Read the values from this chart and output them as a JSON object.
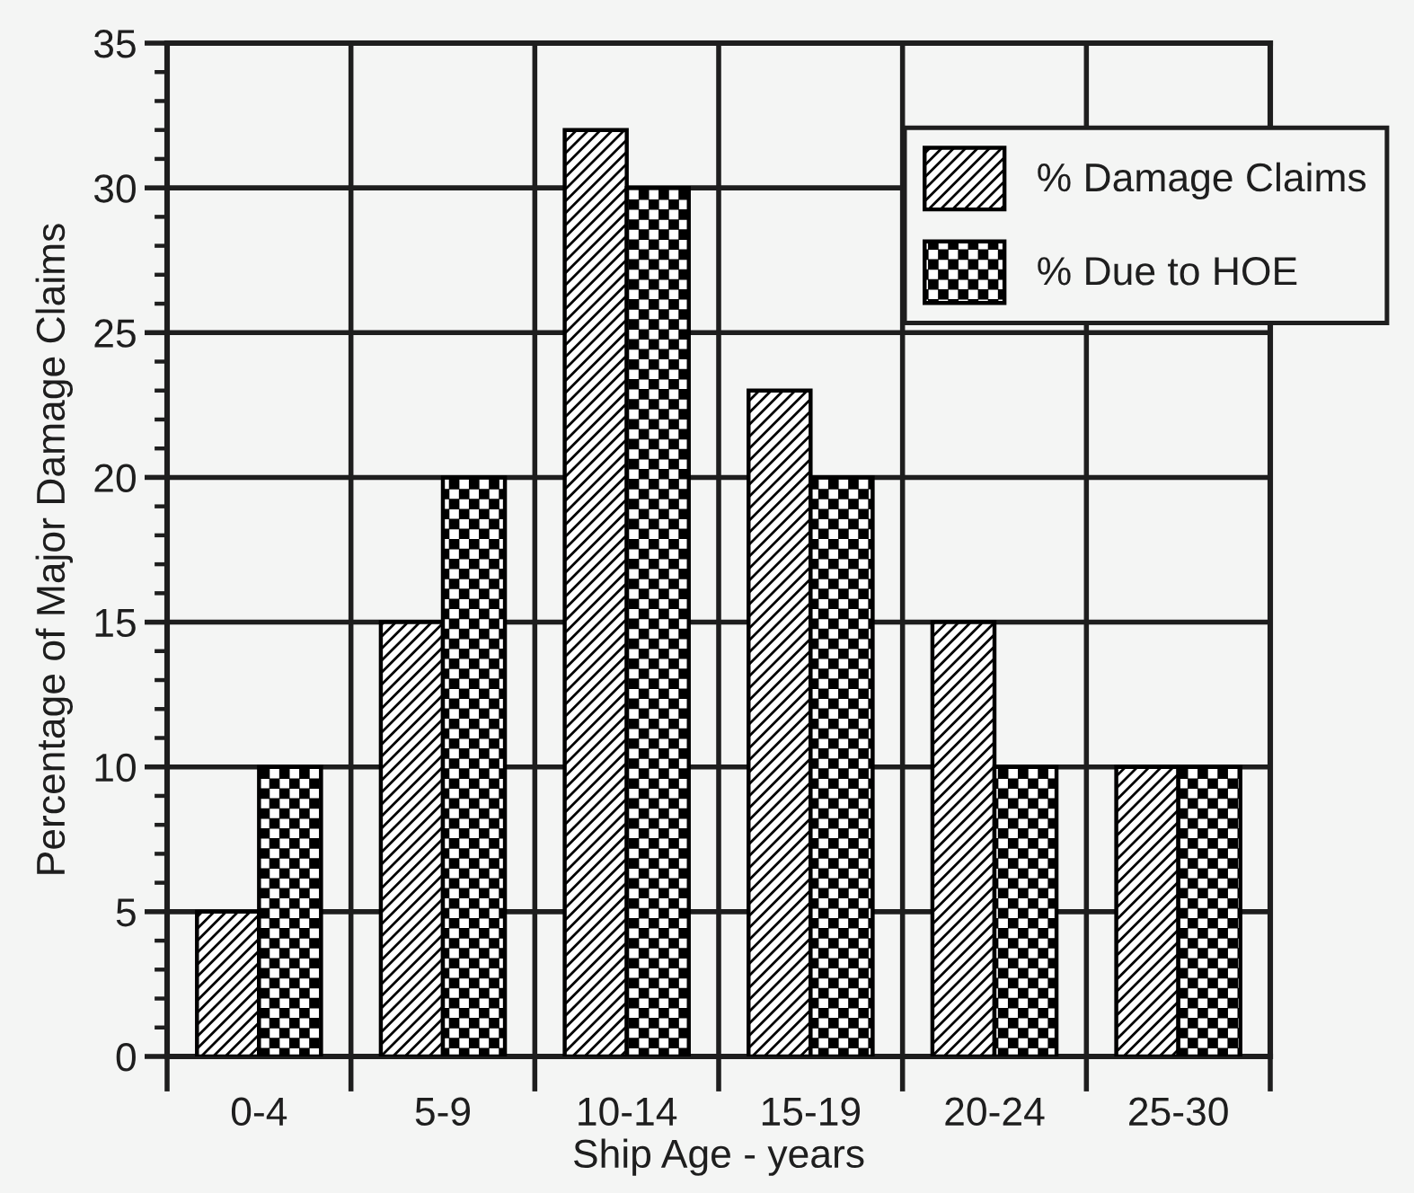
{
  "chart_data": {
    "type": "bar",
    "xlabel": "Ship Age - years",
    "ylabel": "Percentage of Major Damage Claims",
    "categories": [
      "0-4",
      "5-9",
      "10-14",
      "15-19",
      "20-24",
      "25-30"
    ],
    "series": [
      {
        "name": "% Damage Claims",
        "color": "#000000",
        "values": [
          5,
          15,
          32,
          23,
          15,
          10
        ]
      },
      {
        "name": "% Due to HOE",
        "color": "#000000",
        "values": [
          10,
          20,
          30,
          20,
          10,
          10
        ]
      }
    ],
    "ylim": [
      0,
      35
    ],
    "yticks": [
      0,
      {
        "value": 1,
        "label": null
      },
      {
        "value": 2,
        "label": null
      },
      {
        "value": 3,
        "label": null
      },
      {
        "value": 4,
        "label": null
      },
      5,
      {
        "value": 6,
        "label": null
      },
      {
        "value": 7,
        "label": null
      },
      {
        "value": 8,
        "label": null
      },
      {
        "value": 9,
        "label": null
      },
      10,
      {
        "value": 11,
        "label": null
      },
      {
        "value": 12,
        "label": null
      },
      {
        "value": 13,
        "label": null
      },
      {
        "value": 14,
        "label": null
      },
      15,
      {
        "value": 16,
        "label": null
      },
      {
        "value": 17,
        "label": null
      },
      {
        "value": 18,
        "label": null
      },
      {
        "value": 19,
        "label": null
      },
      20,
      {
        "value": 21,
        "label": null
      },
      {
        "value": 22,
        "label": null
      },
      {
        "value": 23,
        "label": null
      },
      {
        "value": 24,
        "label": null
      },
      25,
      {
        "value": 26,
        "label": null
      },
      {
        "value": 27,
        "label": null
      },
      {
        "value": 28,
        "label": null
      },
      {
        "value": 29,
        "label": null
      },
      30,
      {
        "value": 31,
        "label": null
      },
      {
        "value": 32,
        "label": null
      },
      {
        "value": 33,
        "label": null
      },
      {
        "value": 34,
        "label": null
      },
      35
    ],
    "grid": true,
    "legend": "top right"
  }
}
